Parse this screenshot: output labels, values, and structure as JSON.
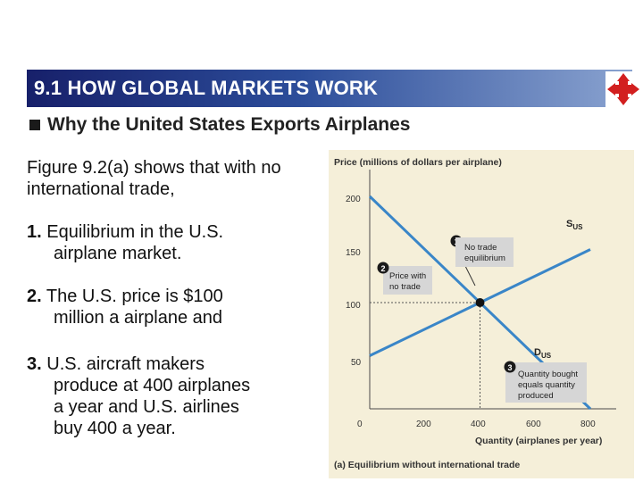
{
  "header": {
    "title": "9.1 HOW GLOBAL MARKETS WORK",
    "nav_icon": "four-arrows-navigation-icon",
    "colors": {
      "bar_dark": "#17206a",
      "bar_light": "#8aa3d0",
      "icon_red": "#d21f1f"
    }
  },
  "subtitle": "Why the United States Exports Airplanes",
  "body": {
    "intro": "Figure 9.2(a) shows that with no international trade,",
    "items": [
      {
        "num": "1.",
        "line1": "Equilibrium in the U.S.",
        "line2": "airplane market."
      },
      {
        "num": "2.",
        "line1": "The U.S. price is $100",
        "line2": "million a airplane and"
      },
      {
        "num": "3.",
        "line1": "U.S. aircraft makers",
        "line2": "produce at 400 airplanes",
        "line3": "a year and U.S. airlines",
        "line4": "buy 400 a year."
      }
    ]
  },
  "chart_data": {
    "type": "line",
    "ylabel": "Price (millions of dollars per airplane)",
    "xlabel": "Quantity (airplanes per year)",
    "caption": "(a) Equilibrium without international trade",
    "xlim": [
      0,
      800
    ],
    "ylim": [
      0,
      200
    ],
    "x_ticks": [
      "0",
      "200",
      "400",
      "600",
      "800"
    ],
    "y_ticks": [
      "50",
      "100",
      "150",
      "200"
    ],
    "series": [
      {
        "name": "S",
        "name_sub": "US",
        "x": [
          0,
          800
        ],
        "y": [
          50,
          150
        ]
      },
      {
        "name": "D",
        "name_sub": "US",
        "x": [
          0,
          800
        ],
        "y": [
          200,
          0
        ]
      }
    ],
    "equilibrium": {
      "x": 400,
      "y": 100
    },
    "annotations": [
      {
        "num": "1",
        "line1": "No trade",
        "line2": "equilibrium"
      },
      {
        "num": "2",
        "line1": "Price with",
        "line2": "no trade"
      },
      {
        "num": "3",
        "line1": "Quantity bought",
        "line2": "equals quantity",
        "line3": "produced"
      }
    ],
    "colors": {
      "curves": "#3a86c8",
      "panel": "#f5efd9",
      "axis": "#4a4a4a"
    }
  }
}
